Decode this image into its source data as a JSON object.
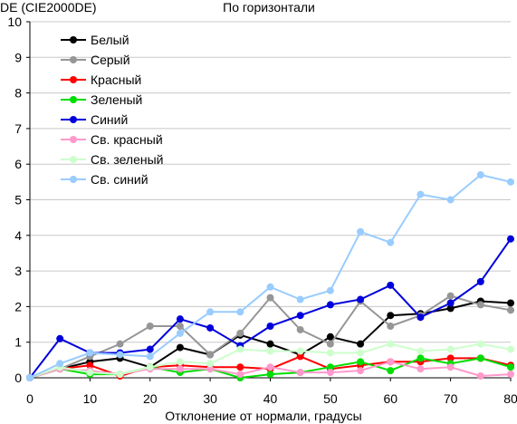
{
  "chart_data": {
    "type": "line",
    "title": "По горизонтали",
    "ylabel": "DE (CIE2000DE)",
    "xlabel": "Отклонение от нормали, градусы",
    "x": [
      0,
      5,
      10,
      15,
      20,
      25,
      30,
      35,
      40,
      45,
      50,
      55,
      60,
      65,
      70,
      75,
      80
    ],
    "xlim": [
      0,
      80
    ],
    "ylim": [
      0,
      10
    ],
    "xticks": [
      0,
      10,
      20,
      30,
      40,
      50,
      60,
      70,
      80
    ],
    "yticks": [
      0,
      1,
      2,
      3,
      4,
      5,
      6,
      7,
      8,
      9,
      10
    ],
    "grid": "y",
    "legend": "top-left",
    "series": [
      {
        "name": "Белый",
        "color": "#000000",
        "values": [
          0,
          0.25,
          0.45,
          0.55,
          0.3,
          0.85,
          0.65,
          1.2,
          0.95,
          0.65,
          1.15,
          0.95,
          1.75,
          1.8,
          1.95,
          2.15,
          2.1
        ]
      },
      {
        "name": "Серый",
        "color": "#969696",
        "values": [
          0,
          0.25,
          0.6,
          0.95,
          1.45,
          1.45,
          0.65,
          1.25,
          2.25,
          1.35,
          0.95,
          2.15,
          1.45,
          1.75,
          2.3,
          2.05,
          1.9
        ]
      },
      {
        "name": "Красный",
        "color": "#ff0000",
        "values": [
          0,
          0.25,
          0.35,
          0.05,
          0.3,
          0.35,
          0.3,
          0.3,
          0.25,
          0.6,
          0.25,
          0.35,
          0.45,
          0.45,
          0.55,
          0.55,
          0.35
        ]
      },
      {
        "name": "Зеленый",
        "color": "#00dd00",
        "values": [
          0,
          0.25,
          0.1,
          0.1,
          0.3,
          0.15,
          0.25,
          0.0,
          0.1,
          0.15,
          0.3,
          0.45,
          0.2,
          0.55,
          0.4,
          0.55,
          0.3
        ]
      },
      {
        "name": "Синий",
        "color": "#0000dd",
        "values": [
          0,
          1.1,
          0.7,
          0.7,
          0.8,
          1.65,
          1.4,
          0.9,
          1.45,
          1.75,
          2.05,
          2.2,
          2.6,
          1.7,
          2.1,
          2.7,
          3.9
        ]
      },
      {
        "name": "Св. красный",
        "color": "#ff99cc",
        "values": [
          0,
          0.25,
          0.2,
          0.1,
          0.25,
          0.25,
          0.25,
          0.1,
          0.3,
          0.15,
          0.15,
          0.2,
          0.45,
          0.25,
          0.3,
          0.05,
          0.1
        ]
      },
      {
        "name": "Св. зеленый",
        "color": "#ccffcc",
        "values": [
          0,
          0.3,
          0.15,
          0.1,
          0.3,
          0.45,
          0.4,
          0.8,
          0.75,
          0.75,
          0.7,
          0.7,
          0.95,
          0.75,
          0.8,
          0.95,
          0.8
        ]
      },
      {
        "name": "Св. синий",
        "color": "#99ccff",
        "values": [
          0,
          0.4,
          0.7,
          0.65,
          0.6,
          1.25,
          1.85,
          1.85,
          2.55,
          2.2,
          2.45,
          4.1,
          3.8,
          5.15,
          5.0,
          5.7,
          5.5
        ]
      }
    ]
  }
}
